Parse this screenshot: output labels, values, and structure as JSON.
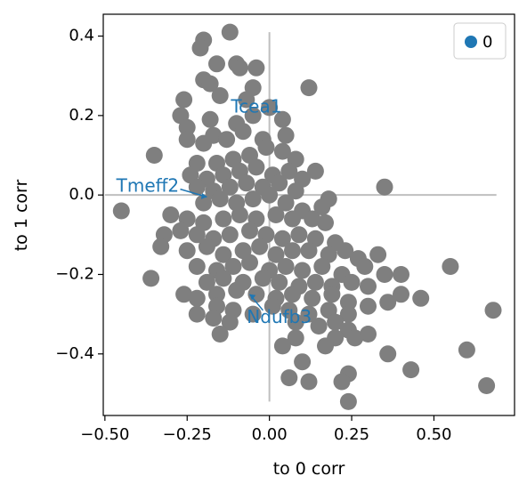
{
  "chart_data": {
    "type": "scatter",
    "title": "",
    "xlabel": "to 0 corr",
    "ylabel": "to 1 corr",
    "xlim": [
      -0.505,
      0.745
    ],
    "ylim": [
      -0.555,
      0.455
    ],
    "xticks": [
      -0.5,
      -0.25,
      0.0,
      0.25,
      0.5
    ],
    "xtick_labels": [
      "−0.50",
      "−0.25",
      "0.00",
      "0.25",
      "0.50"
    ],
    "yticks": [
      -0.4,
      -0.2,
      0.0,
      0.2,
      0.4
    ],
    "ytick_labels": [
      "−0.4",
      "−0.2",
      "0.0",
      "0.2",
      "0.4"
    ],
    "grid": false,
    "legend": {
      "position": "top-right",
      "entries": [
        {
          "label": "0",
          "color": "#1f77b4"
        }
      ]
    },
    "point_color": "#7f7f7f",
    "annotation_color": "#1f77b4",
    "reference_lines": {
      "color": "#bfbfbf",
      "horizontal": {
        "y": 0.0,
        "x_from": -0.5,
        "x_to": 0.69
      },
      "vertical": {
        "x": 0.0,
        "y_from": -0.52,
        "y_to": 0.41
      }
    },
    "annotations": [
      {
        "text": "Tcea1",
        "x": -0.04,
        "y": 0.22,
        "point": [
          -0.05,
          0.22
        ]
      },
      {
        "text": "Tmeff2",
        "x": -0.37,
        "y": 0.02,
        "point": [
          -0.19,
          -0.005
        ]
      },
      {
        "text": "Ndufb3",
        "x": 0.03,
        "y": -0.31,
        "point": [
          -0.06,
          -0.25
        ]
      }
    ],
    "series": [
      {
        "name": "",
        "points": [
          [
            -0.2,
            0.39
          ],
          [
            -0.12,
            0.41
          ],
          [
            -0.21,
            0.37
          ],
          [
            -0.16,
            0.33
          ],
          [
            -0.1,
            0.33
          ],
          [
            -0.09,
            0.32
          ],
          [
            -0.04,
            0.32
          ],
          [
            -0.2,
            0.29
          ],
          [
            -0.18,
            0.28
          ],
          [
            -0.15,
            0.25
          ],
          [
            -0.07,
            0.24
          ],
          [
            0.12,
            0.27
          ],
          [
            -0.26,
            0.24
          ],
          [
            -0.27,
            0.2
          ],
          [
            -0.25,
            0.17
          ],
          [
            -0.18,
            0.19
          ],
          [
            -0.1,
            0.18
          ],
          [
            -0.05,
            0.2
          ],
          [
            0.0,
            0.22
          ],
          [
            0.04,
            0.19
          ],
          [
            -0.25,
            0.14
          ],
          [
            -0.2,
            0.13
          ],
          [
            -0.17,
            0.15
          ],
          [
            -0.13,
            0.14
          ],
          [
            -0.08,
            0.16
          ],
          [
            -0.02,
            0.14
          ],
          [
            0.05,
            0.15
          ],
          [
            -0.35,
            0.1
          ],
          [
            -0.22,
            0.08
          ],
          [
            -0.16,
            0.08
          ],
          [
            -0.11,
            0.09
          ],
          [
            -0.06,
            0.1
          ],
          [
            -0.01,
            0.12
          ],
          [
            0.04,
            0.11
          ],
          [
            0.08,
            0.09
          ],
          [
            -0.24,
            0.05
          ],
          [
            -0.19,
            0.04
          ],
          [
            -0.14,
            0.05
          ],
          [
            -0.09,
            0.06
          ],
          [
            -0.04,
            0.07
          ],
          [
            0.01,
            0.05
          ],
          [
            0.06,
            0.06
          ],
          [
            0.1,
            0.04
          ],
          [
            0.14,
            0.06
          ],
          [
            -0.22,
            0.02
          ],
          [
            -0.17,
            0.01
          ],
          [
            -0.12,
            0.02
          ],
          [
            -0.07,
            0.03
          ],
          [
            -0.02,
            0.02
          ],
          [
            0.03,
            0.03
          ],
          [
            0.08,
            0.01
          ],
          [
            -0.2,
            -0.02
          ],
          [
            -0.15,
            -0.01
          ],
          [
            -0.1,
            -0.02
          ],
          [
            -0.05,
            -0.01
          ],
          [
            0.0,
            0.0
          ],
          [
            0.05,
            -0.02
          ],
          [
            0.1,
            -0.04
          ],
          [
            0.16,
            -0.03
          ],
          [
            0.18,
            -0.01
          ],
          [
            0.35,
            0.02
          ],
          [
            -0.45,
            -0.04
          ],
          [
            -0.3,
            -0.05
          ],
          [
            -0.25,
            -0.06
          ],
          [
            -0.2,
            -0.07
          ],
          [
            -0.14,
            -0.06
          ],
          [
            -0.09,
            -0.05
          ],
          [
            -0.04,
            -0.06
          ],
          [
            0.02,
            -0.05
          ],
          [
            0.07,
            -0.06
          ],
          [
            0.13,
            -0.06
          ],
          [
            0.17,
            -0.07
          ],
          [
            -0.32,
            -0.1
          ],
          [
            -0.27,
            -0.09
          ],
          [
            -0.22,
            -0.1
          ],
          [
            -0.17,
            -0.11
          ],
          [
            -0.12,
            -0.1
          ],
          [
            -0.06,
            -0.09
          ],
          [
            -0.01,
            -0.1
          ],
          [
            0.04,
            -0.11
          ],
          [
            0.09,
            -0.1
          ],
          [
            0.14,
            -0.11
          ],
          [
            0.2,
            -0.12
          ],
          [
            -0.33,
            -0.13
          ],
          [
            -0.25,
            -0.14
          ],
          [
            -0.19,
            -0.13
          ],
          [
            -0.14,
            -0.15
          ],
          [
            -0.08,
            -0.14
          ],
          [
            -0.03,
            -0.13
          ],
          [
            0.02,
            -0.15
          ],
          [
            0.07,
            -0.14
          ],
          [
            0.12,
            -0.14
          ],
          [
            0.18,
            -0.15
          ],
          [
            0.23,
            -0.14
          ],
          [
            0.27,
            -0.16
          ],
          [
            0.33,
            -0.15
          ],
          [
            -0.22,
            -0.18
          ],
          [
            -0.16,
            -0.19
          ],
          [
            -0.11,
            -0.18
          ],
          [
            -0.06,
            -0.17
          ],
          [
            0.0,
            -0.19
          ],
          [
            0.05,
            -0.18
          ],
          [
            0.1,
            -0.19
          ],
          [
            0.16,
            -0.18
          ],
          [
            0.22,
            -0.2
          ],
          [
            0.29,
            -0.18
          ],
          [
            0.35,
            -0.2
          ],
          [
            0.4,
            -0.2
          ],
          [
            0.55,
            -0.18
          ],
          [
            -0.36,
            -0.21
          ],
          [
            -0.19,
            -0.22
          ],
          [
            -0.14,
            -0.21
          ],
          [
            -0.08,
            -0.22
          ],
          [
            -0.02,
            -0.21
          ],
          [
            0.03,
            -0.22
          ],
          [
            0.09,
            -0.23
          ],
          [
            0.14,
            -0.22
          ],
          [
            0.19,
            -0.23
          ],
          [
            0.25,
            -0.22
          ],
          [
            0.3,
            -0.23
          ],
          [
            -0.26,
            -0.25
          ],
          [
            -0.22,
            -0.26
          ],
          [
            -0.16,
            -0.25
          ],
          [
            -0.1,
            -0.24
          ],
          [
            -0.04,
            -0.25
          ],
          [
            0.02,
            -0.26
          ],
          [
            0.07,
            -0.25
          ],
          [
            0.13,
            -0.26
          ],
          [
            0.19,
            -0.25
          ],
          [
            0.24,
            -0.27
          ],
          [
            0.4,
            -0.25
          ],
          [
            0.46,
            -0.26
          ],
          [
            -0.16,
            -0.28
          ],
          [
            -0.11,
            -0.29
          ],
          [
            -0.05,
            -0.3
          ],
          [
            0.01,
            -0.28
          ],
          [
            0.06,
            -0.29
          ],
          [
            0.12,
            -0.3
          ],
          [
            0.18,
            -0.29
          ],
          [
            0.24,
            -0.3
          ],
          [
            0.3,
            -0.28
          ],
          [
            0.36,
            -0.27
          ],
          [
            0.68,
            -0.29
          ],
          [
            -0.22,
            -0.3
          ],
          [
            -0.17,
            -0.31
          ],
          [
            -0.12,
            -0.32
          ],
          [
            0.08,
            -0.32
          ],
          [
            0.15,
            -0.33
          ],
          [
            0.2,
            -0.32
          ],
          [
            0.24,
            -0.34
          ],
          [
            -0.15,
            -0.35
          ],
          [
            0.08,
            -0.36
          ],
          [
            0.2,
            -0.36
          ],
          [
            0.26,
            -0.36
          ],
          [
            0.3,
            -0.35
          ],
          [
            0.04,
            -0.38
          ],
          [
            0.17,
            -0.38
          ],
          [
            0.36,
            -0.4
          ],
          [
            0.1,
            -0.42
          ],
          [
            0.24,
            -0.45
          ],
          [
            0.6,
            -0.39
          ],
          [
            0.43,
            -0.44
          ],
          [
            0.06,
            -0.46
          ],
          [
            0.12,
            -0.47
          ],
          [
            0.22,
            -0.47
          ],
          [
            0.66,
            -0.48
          ],
          [
            0.24,
            -0.52
          ],
          [
            -0.05,
            0.27
          ]
        ]
      }
    ]
  }
}
